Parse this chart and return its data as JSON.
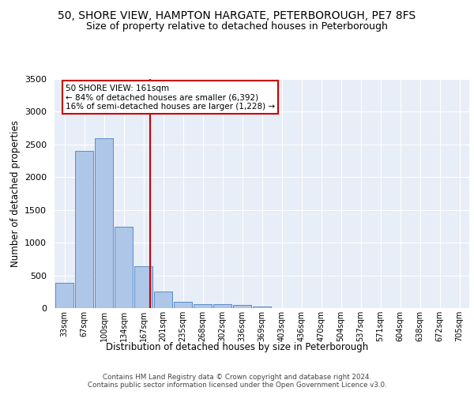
{
  "title": "50, SHORE VIEW, HAMPTON HARGATE, PETERBOROUGH, PE7 8FS",
  "subtitle": "Size of property relative to detached houses in Peterborough",
  "xlabel": "Distribution of detached houses by size in Peterborough",
  "ylabel": "Number of detached properties",
  "categories": [
    "33sqm",
    "67sqm",
    "100sqm",
    "134sqm",
    "167sqm",
    "201sqm",
    "235sqm",
    "268sqm",
    "302sqm",
    "336sqm",
    "369sqm",
    "403sqm",
    "436sqm",
    "470sqm",
    "504sqm",
    "537sqm",
    "571sqm",
    "604sqm",
    "638sqm",
    "672sqm",
    "705sqm"
  ],
  "values": [
    390,
    2400,
    2600,
    1240,
    640,
    255,
    100,
    60,
    55,
    45,
    30,
    0,
    0,
    0,
    0,
    0,
    0,
    0,
    0,
    0,
    0
  ],
  "bar_color": "#aec6e8",
  "bar_edge_color": "#5b8cc8",
  "background_color": "#e8eef7",
  "grid_color": "#ffffff",
  "vline_x": 4.35,
  "vline_color": "#cc0000",
  "annotation_text": "50 SHORE VIEW: 161sqm\n← 84% of detached houses are smaller (6,392)\n16% of semi-detached houses are larger (1,228) →",
  "annotation_box_color": "#ffffff",
  "annotation_box_edge": "#cc0000",
  "ylim": [
    0,
    3500
  ],
  "yticks": [
    0,
    500,
    1000,
    1500,
    2000,
    2500,
    3000,
    3500
  ],
  "footer": "Contains HM Land Registry data © Crown copyright and database right 2024.\nContains public sector information licensed under the Open Government Licence v3.0.",
  "title_fontsize": 10,
  "subtitle_fontsize": 9,
  "xlabel_fontsize": 8.5,
  "ylabel_fontsize": 8.5,
  "ann_fontsize": 7.5
}
